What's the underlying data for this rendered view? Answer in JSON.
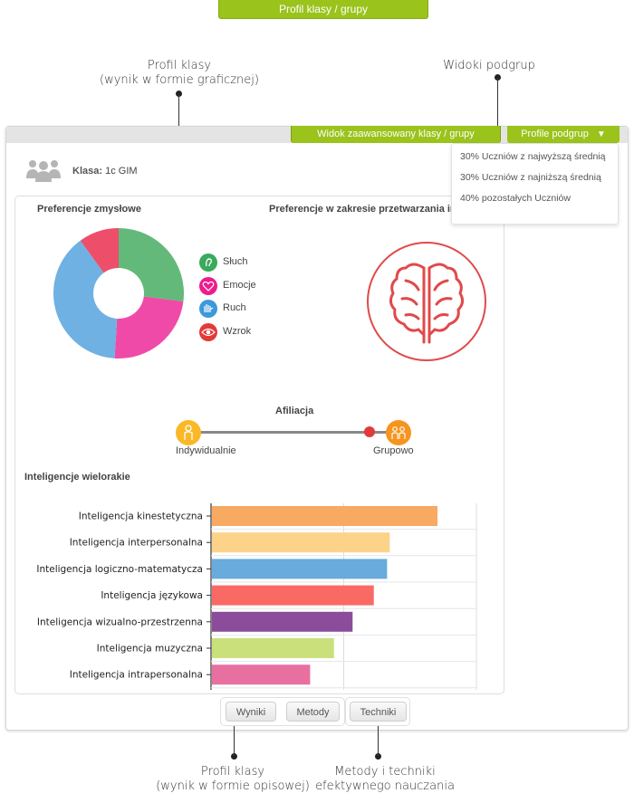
{
  "header": {
    "title": "Profil klasy / grupy"
  },
  "callouts": {
    "profile_graphic_line1": "Profil klasy",
    "profile_graphic_line2": "(wynik w formie graficznej)",
    "subgroups": "Widoki podgrup",
    "profile_desc_line1": "Profil klasy",
    "profile_desc_line2": "(wynik w formie opisowej)",
    "methods_line1": "Metody i techniki",
    "methods_line2": "efektywnego nauczania"
  },
  "tabs": {
    "advanced": "Widok zaawansowany klasy / grupy",
    "subgroup_profiles": "Profile podgrup"
  },
  "dropdown": {
    "options": [
      "30% Uczniów z najwyższą średnią",
      "30% Uczniów z najniższą średnią",
      "40% pozostałych Uczniów"
    ]
  },
  "class_info": {
    "label": "Klasa:",
    "value": "1c GIM"
  },
  "sensory": {
    "title": "Preferencje zmysłowe",
    "legend": [
      {
        "label": "Słuch",
        "color": "#3aaa5c",
        "icon": "ear-icon"
      },
      {
        "label": "Emocje",
        "color": "#ec1c8e",
        "icon": "heart-icon"
      },
      {
        "label": "Ruch",
        "color": "#3c9ad9",
        "icon": "hands-icon"
      },
      {
        "label": "Wzrok",
        "color": "#e23a3a",
        "icon": "eye-icon"
      }
    ]
  },
  "processing": {
    "title": "Preferencje w zakresie przetwarzania informacji"
  },
  "affiliation": {
    "title": "Afiliacja",
    "left_label": "Indywidualnie",
    "right_label": "Grupowo",
    "value": 0.86
  },
  "intelligences": {
    "title": "Inteligencje wielorakie"
  },
  "chart_data": [
    {
      "type": "pie",
      "title": "Preferencje zmysłowe",
      "categories": [
        "Słuch",
        "Emocje",
        "Ruch",
        "Wzrok"
      ],
      "values": [
        27,
        24,
        39,
        10
      ],
      "colors": [
        "#63b97a",
        "#f04aa8",
        "#6fb1e2",
        "#ed4e6a"
      ]
    },
    {
      "type": "bar",
      "title": "Inteligencje wielorakie",
      "orientation": "horizontal",
      "categories": [
        "Inteligencja kinestetyczna",
        "Inteligencja interpersonalna",
        "Inteligencja logiczno-matematycza",
        "Inteligencja językowa",
        "Inteligencja wizualno-przestrzenna",
        "Inteligencja muzyczna",
        "Inteligencja intrapersonalna"
      ],
      "values": [
        85,
        67,
        66,
        61,
        53,
        46,
        37
      ],
      "colors": [
        "#f8a962",
        "#fdd389",
        "#68abdc",
        "#fa6a64",
        "#8b4d9b",
        "#c9e07b",
        "#e870a0"
      ],
      "xlim": [
        0,
        100
      ],
      "grid": true
    }
  ],
  "buttons": {
    "results": "Wyniki",
    "methods": "Metody",
    "techniques": "Techniki"
  }
}
